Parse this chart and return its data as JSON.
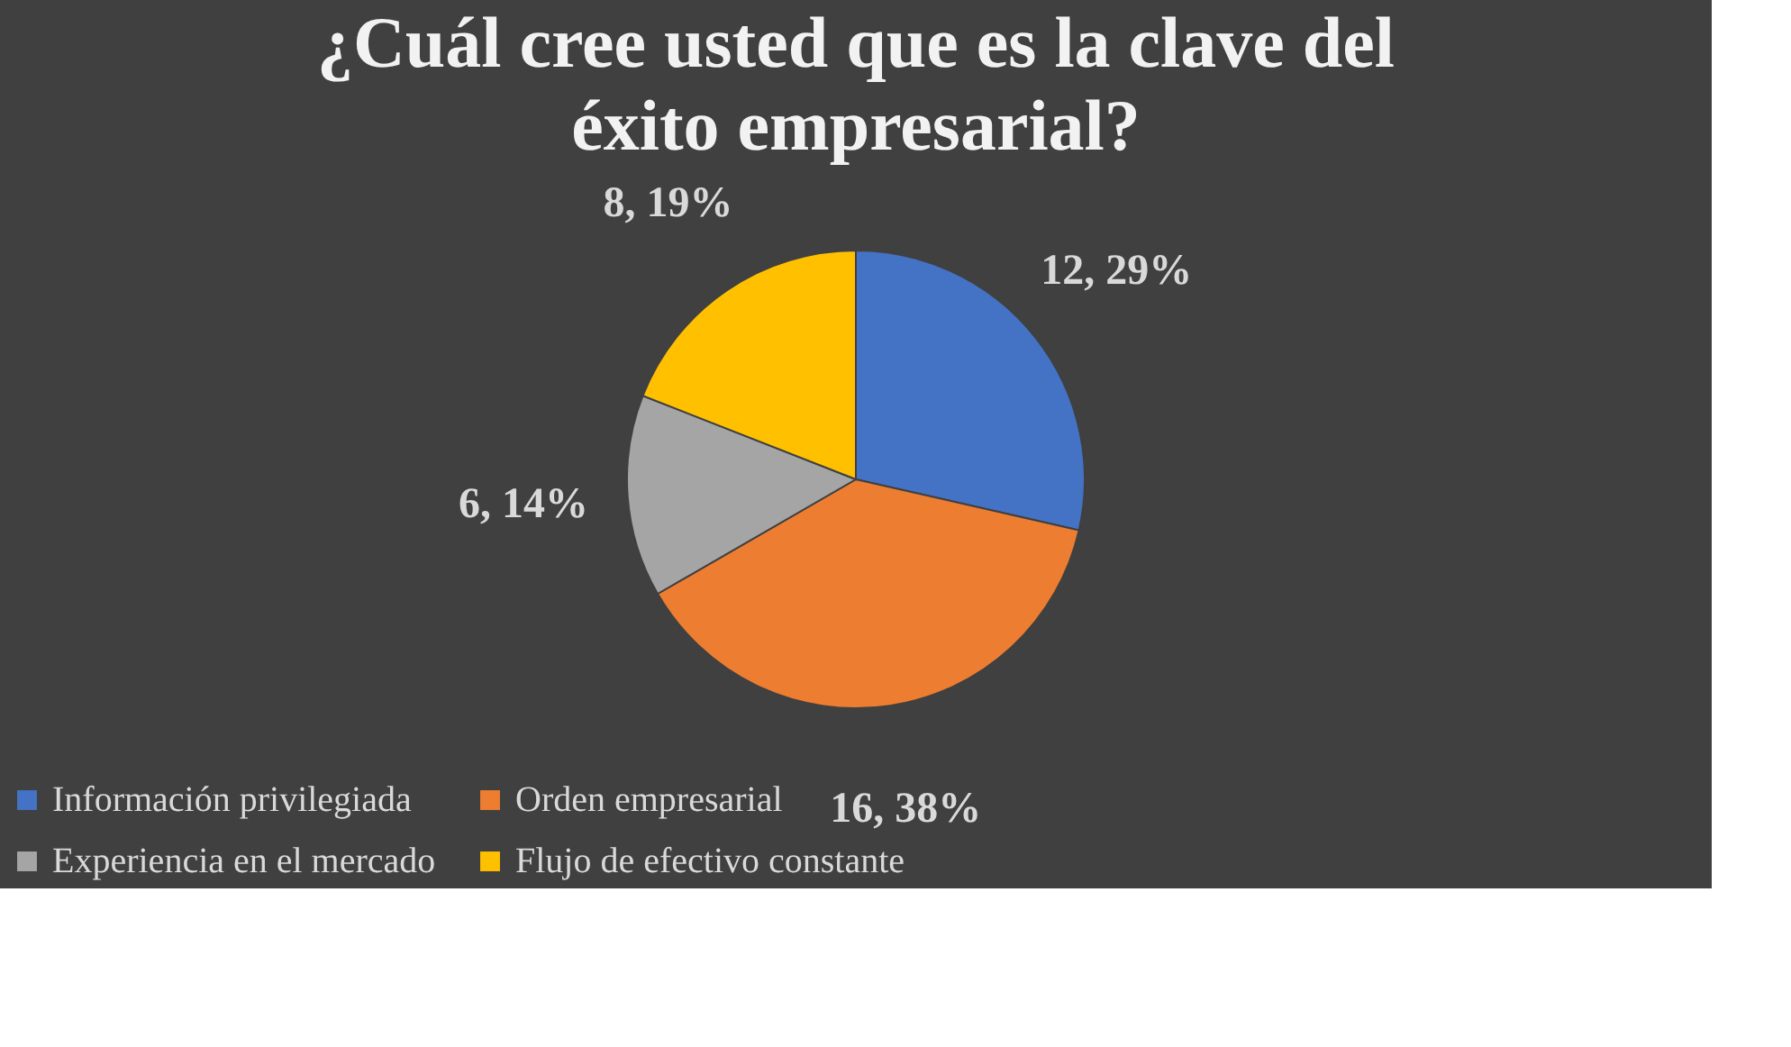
{
  "chart_data": {
    "type": "pie",
    "title": "¿Cuál cree usted que es la clave del éxito empresarial?",
    "categories": [
      "Información privilegiada",
      "Orden empresarial",
      "Experiencia en el mercado",
      "Flujo de efectivo constante"
    ],
    "values": [
      12,
      16,
      6,
      8
    ],
    "colors": [
      "#4472c4",
      "#ed7d31",
      "#a5a5a5",
      "#ffc000"
    ],
    "value_labels": [
      "12, 29%",
      "16, 38%",
      "6, 14%",
      "8, 19%"
    ],
    "legend": "bottom"
  }
}
